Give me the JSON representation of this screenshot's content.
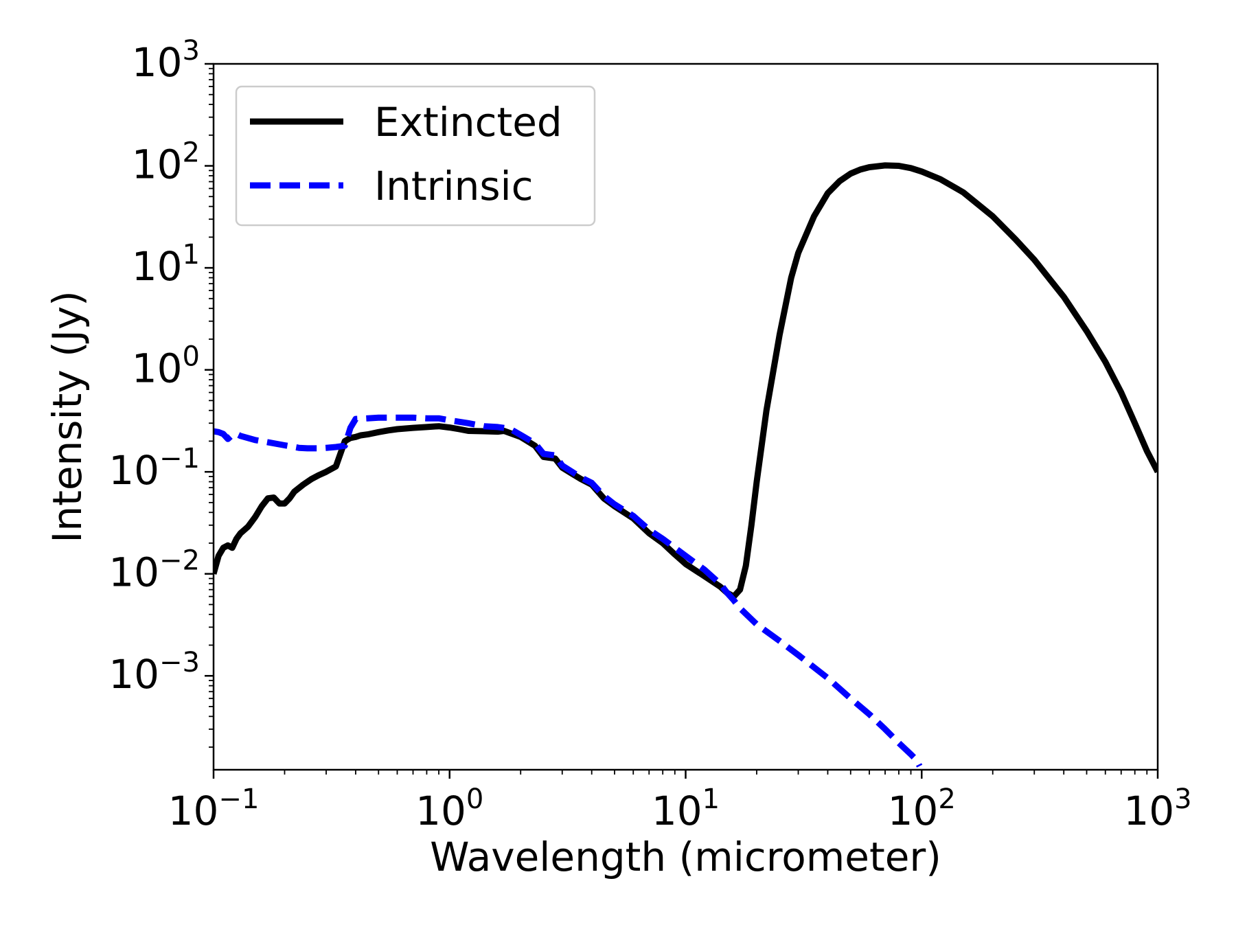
{
  "chart_data": {
    "type": "line",
    "xscale": "log",
    "yscale": "log",
    "xlabel": "Wavelength (micrometer)",
    "ylabel": "Intensity (Jy)",
    "xlim": [
      0.1,
      1000
    ],
    "ylim": [
      0.00012,
      1000
    ],
    "x_ticks": [
      {
        "base": "10",
        "exp": "−1",
        "value": 0.1
      },
      {
        "base": "10",
        "exp": "0",
        "value": 1
      },
      {
        "base": "10",
        "exp": "1",
        "value": 10
      },
      {
        "base": "10",
        "exp": "2",
        "value": 100
      },
      {
        "base": "10",
        "exp": "3",
        "value": 1000
      }
    ],
    "y_ticks": [
      {
        "base": "10",
        "exp": "−3",
        "value": 0.001
      },
      {
        "base": "10",
        "exp": "−2",
        "value": 0.01
      },
      {
        "base": "10",
        "exp": "−1",
        "value": 0.1
      },
      {
        "base": "10",
        "exp": "0",
        "value": 1
      },
      {
        "base": "10",
        "exp": "1",
        "value": 10
      },
      {
        "base": "10",
        "exp": "2",
        "value": 100
      },
      {
        "base": "10",
        "exp": "3",
        "value": 1000
      }
    ],
    "legend_position": "upper-left",
    "series": [
      {
        "name": "Extincted",
        "color": "#000000",
        "style": "solid",
        "x": [
          0.1,
          0.105,
          0.11,
          0.115,
          0.12,
          0.125,
          0.13,
          0.14,
          0.15,
          0.16,
          0.17,
          0.18,
          0.19,
          0.2,
          0.21,
          0.22,
          0.24,
          0.26,
          0.28,
          0.3,
          0.33,
          0.36,
          0.38,
          0.4,
          0.42,
          0.45,
          0.5,
          0.55,
          0.6,
          0.7,
          0.8,
          0.9,
          1.0,
          1.1,
          1.2,
          1.4,
          1.6,
          1.7,
          2.0,
          2.3,
          2.5,
          2.8,
          3.0,
          3.3,
          3.6,
          4.0,
          4.5,
          5.0,
          6.0,
          7.0,
          8.0,
          9.0,
          10.0,
          12.0,
          14.0,
          15.0,
          16.0,
          17.0,
          18.0,
          19.0,
          20.0,
          22.0,
          25.0,
          28.0,
          30.0,
          35.0,
          40.0,
          45.0,
          50.0,
          55.0,
          60.0,
          70.0,
          80.0,
          90.0,
          100.0,
          120.0,
          150.0,
          200.0,
          250.0,
          300.0,
          400.0,
          500.0,
          600.0,
          700.0,
          800.0,
          900.0,
          1000.0
        ],
        "y": [
          0.01,
          0.015,
          0.018,
          0.019,
          0.018,
          0.022,
          0.025,
          0.029,
          0.036,
          0.046,
          0.055,
          0.056,
          0.049,
          0.049,
          0.055,
          0.064,
          0.075,
          0.085,
          0.093,
          0.1,
          0.113,
          0.2,
          0.215,
          0.22,
          0.228,
          0.233,
          0.245,
          0.255,
          0.262,
          0.27,
          0.275,
          0.28,
          0.272,
          0.262,
          0.252,
          0.25,
          0.248,
          0.252,
          0.22,
          0.18,
          0.14,
          0.135,
          0.11,
          0.096,
          0.085,
          0.075,
          0.055,
          0.046,
          0.035,
          0.025,
          0.02,
          0.0155,
          0.0125,
          0.0095,
          0.0075,
          0.0065,
          0.006,
          0.007,
          0.012,
          0.03,
          0.08,
          0.4,
          2.2,
          8.0,
          14.0,
          32.0,
          54.0,
          71.0,
          84.0,
          92.0,
          97.0,
          101.0,
          100.0,
          95.0,
          88.0,
          74.0,
          55.0,
          32.0,
          19.0,
          12.0,
          5.2,
          2.4,
          1.2,
          0.6,
          0.3,
          0.16,
          0.1
        ]
      },
      {
        "name": "Intrinsic",
        "color": "#0000ff",
        "style": "dashed",
        "x": [
          0.1,
          0.105,
          0.11,
          0.115,
          0.12,
          0.125,
          0.13,
          0.15,
          0.17,
          0.2,
          0.23,
          0.25,
          0.28,
          0.3,
          0.33,
          0.36,
          0.38,
          0.4,
          0.45,
          0.5,
          0.6,
          0.7,
          0.8,
          0.9,
          1.0,
          1.2,
          1.4,
          1.6,
          1.8,
          2.0,
          2.3,
          2.5,
          2.8,
          3.0,
          3.3,
          3.6,
          4.0,
          4.5,
          5.0,
          6.0,
          7.0,
          8.0,
          9.0,
          10.0,
          12.0,
          14.0,
          15.0,
          16.0,
          17.0,
          20.0,
          25.0,
          30.0,
          40.0,
          50.0,
          60.0,
          70.0,
          80.0,
          90.0,
          95.0,
          98.0
        ],
        "y": [
          0.25,
          0.245,
          0.235,
          0.21,
          0.23,
          0.235,
          0.225,
          0.205,
          0.195,
          0.182,
          0.172,
          0.17,
          0.17,
          0.172,
          0.175,
          0.18,
          0.27,
          0.33,
          0.335,
          0.34,
          0.34,
          0.34,
          0.335,
          0.335,
          0.32,
          0.3,
          0.28,
          0.275,
          0.265,
          0.23,
          0.19,
          0.15,
          0.145,
          0.115,
          0.1,
          0.088,
          0.078,
          0.058,
          0.048,
          0.037,
          0.027,
          0.022,
          0.018,
          0.015,
          0.011,
          0.008,
          0.0065,
          0.0055,
          0.0046,
          0.0032,
          0.0022,
          0.0016,
          0.00095,
          0.0006,
          0.00042,
          0.0003,
          0.00022,
          0.00017,
          0.00015,
          0.00013
        ]
      }
    ]
  }
}
